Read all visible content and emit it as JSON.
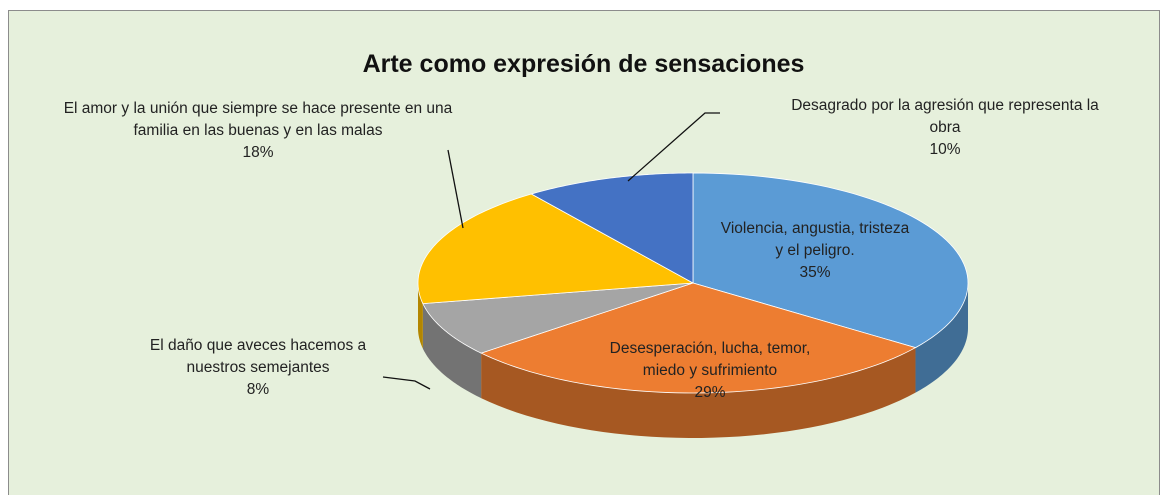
{
  "chart_data": {
    "type": "pie3d",
    "title": "Arte como expresión de sensaciones",
    "categories": [
      "Violencia, angustia, tristeza y el peligro.",
      "Desesperación, lucha, temor, miedo y sufrimiento",
      "El daño que aveces hacemos a nuestros semejantes",
      "El amor y la unión que siempre se hace presente en una familia en las buenas y en las malas",
      "Desagrado por la agresión que representa la obra"
    ],
    "values": [
      35,
      29,
      8,
      18,
      10
    ],
    "value_labels": [
      "35%",
      "29%",
      "8%",
      "18%",
      "10%"
    ],
    "colors": [
      "#5b9bd5",
      "#ed7d31",
      "#a5a5a5",
      "#ffc000",
      "#4472c4"
    ]
  }
}
